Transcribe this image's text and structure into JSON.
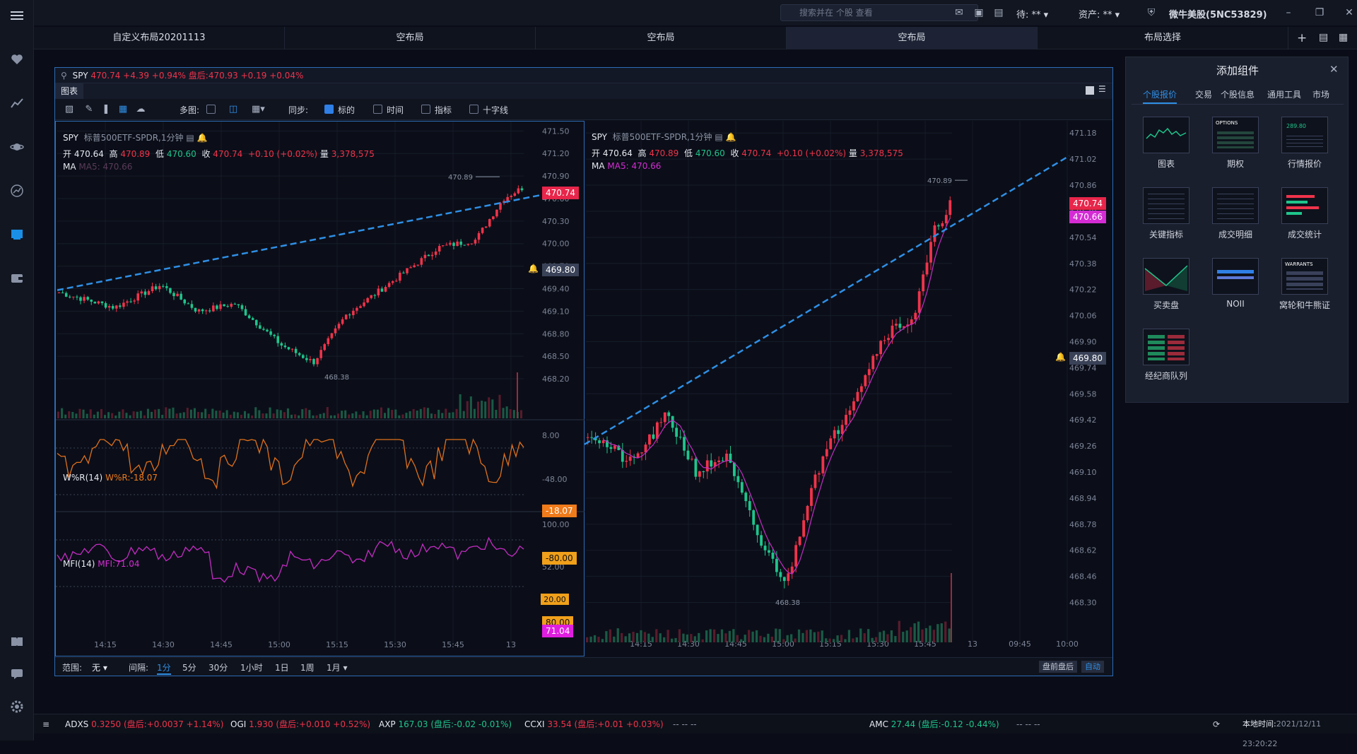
{
  "sidebar": {
    "items": [
      "menu-icon",
      "heart-icon",
      "chart-icon",
      "planet-icon",
      "trend-icon",
      "wallet-icon",
      "book-icon",
      "message-icon",
      "settings-icon"
    ]
  },
  "topbar": {
    "search_placeholder": "搜索并在 个股 查看",
    "pending_label": "待: **",
    "assets_label": "资产: **",
    "account_name": "微牛美股(5NC53829)"
  },
  "tabs": [
    {
      "label": "自定义布局20201113",
      "active": false
    },
    {
      "label": "空布局",
      "active": false
    },
    {
      "label": "空布局",
      "active": false
    },
    {
      "label": "空布局",
      "active": true
    },
    {
      "label": "布局选择",
      "active": false
    }
  ],
  "panel": {
    "symbol": "SPY",
    "quote": "470.74 +4.39 +0.94%",
    "after_hours_label": "盘后:",
    "after_hours_quote": "470.93 +0.19 +0.04%",
    "tab_label": "图表",
    "toolbar": {
      "multi_label": "多图:",
      "sync_label": "同步:",
      "sync_items": [
        {
          "label": "标的",
          "checked": true
        },
        {
          "label": "时间",
          "checked": false
        },
        {
          "label": "指标",
          "checked": false
        },
        {
          "label": "十字线",
          "checked": false
        }
      ]
    },
    "range_label": "范围:",
    "range_value": "无",
    "interval_label": "间隔:",
    "intervals": [
      "1分",
      "5分",
      "30分",
      "1小时",
      "1日",
      "1周",
      "1月"
    ],
    "active_interval": "1分",
    "btn_after_hours": "盘前盘后",
    "btn_auto": "自动"
  },
  "left_chart": {
    "symbol": "SPY",
    "name": "标普500ETF-SPDR,1分钟",
    "ohlc": {
      "open_label": "开",
      "open": "470.64",
      "high_label": "高",
      "high": "470.89",
      "low_label": "低",
      "low": "470.60",
      "close_label": "收",
      "close": "470.74",
      "change": "+0.10 (+0.02%)",
      "vol_label": "量",
      "vol": "3,378,575"
    },
    "ma_label": "MA",
    "ma_value": "MA5: 470.66",
    "price_axis": [
      "471.50",
      "471.20",
      "470.90",
      "470.60",
      "470.30",
      "470.00",
      "469.70",
      "469.40",
      "469.10",
      "468.80",
      "468.50",
      "468.20"
    ],
    "last_price": "470.74",
    "alert_price": "469.80",
    "high_mark": "470.89",
    "low_mark": "468.38",
    "wr_title": "W%R(14)",
    "wr_value": "W%R:-18.07",
    "wr_axis": [
      "8.00",
      "-48.00"
    ],
    "wr_tag": "-18.07",
    "wr_level": "-80.00",
    "mfi_title": "MFI(14)",
    "mfi_value": "MFI:71.04",
    "mfi_axis": [
      "100.00",
      "52.00",
      "20.00"
    ],
    "mfi_upper": "80.00",
    "mfi_tag": "71.04",
    "mfi_lower": "20.00",
    "time_axis": [
      "14:15",
      "14:30",
      "14:45",
      "15:00",
      "15:15",
      "15:30",
      "15:45",
      "13"
    ]
  },
  "right_chart": {
    "symbol": "SPY",
    "name": "标普500ETF-SPDR,1分钟",
    "ohlc": {
      "open_label": "开",
      "open": "470.64",
      "high_label": "高",
      "high": "470.89",
      "low_label": "低",
      "low": "470.60",
      "close_label": "收",
      "close": "470.74",
      "change": "+0.10 (+0.02%)",
      "vol_label": "量",
      "vol": "3,378,575"
    },
    "ma_label": "MA",
    "ma_value": "MA5: 470.66",
    "price_axis": [
      "471.18",
      "471.02",
      "470.86",
      "470.70",
      "470.54",
      "470.38",
      "470.22",
      "470.06",
      "469.90",
      "469.74",
      "469.58",
      "469.42",
      "469.26",
      "469.10",
      "468.94",
      "468.78",
      "468.62",
      "468.46",
      "468.30"
    ],
    "last_price": "470.74",
    "ma_price": "470.66",
    "alert_price": "469.80",
    "high_mark": "470.89",
    "low_mark": "468.38",
    "time_axis": [
      "14:15",
      "14:30",
      "14:45",
      "15:00",
      "15:15",
      "15:30",
      "15:45",
      "13",
      "09:45",
      "10:00"
    ]
  },
  "components": {
    "title": "添加组件",
    "tabs": [
      "个股报价",
      "交易",
      "个股信息",
      "通用工具",
      "市场"
    ],
    "active_tab": "个股报价",
    "tiles": [
      {
        "label": "图表",
        "thumb": ""
      },
      {
        "label": "期权",
        "thumb": "OPTIONS"
      },
      {
        "label": "行情报价",
        "thumb": "289.80"
      },
      {
        "label": "关键指标",
        "thumb": ""
      },
      {
        "label": "成交明细",
        "thumb": ""
      },
      {
        "label": "成交统计",
        "thumb": ""
      },
      {
        "label": "买卖盘",
        "thumb": ""
      },
      {
        "label": "NOII",
        "thumb": ""
      },
      {
        "label": "窝轮和牛熊证",
        "thumb": "WARRANTS"
      },
      {
        "label": "经纪商队列",
        "thumb": ""
      }
    ]
  },
  "ticker": [
    {
      "sym": "ADXS",
      "price": "0.3250",
      "ah": "(盘后:+0.0037 +1.14%)",
      "dir": "up"
    },
    {
      "sym": "OGI",
      "price": "1.930",
      "ah": "(盘后:+0.010 +0.52%)",
      "dir": "up"
    },
    {
      "sym": "AXP",
      "price": "167.03",
      "ah": "(盘后:-0.02 -0.01%)",
      "dir": "down"
    },
    {
      "sym": "CCXI",
      "price": "33.54",
      "ah": "(盘后:+0.01 +0.03%)",
      "dir": "up"
    },
    {
      "sym": "AMC",
      "price": "27.44",
      "ah": "(盘后:-0.12 -0.44%)",
      "dir": "down"
    }
  ],
  "ticker_dashes": "-- -- --",
  "local_time_label": "本地时间:",
  "local_time": "2021/12/11 23:20:22"
}
